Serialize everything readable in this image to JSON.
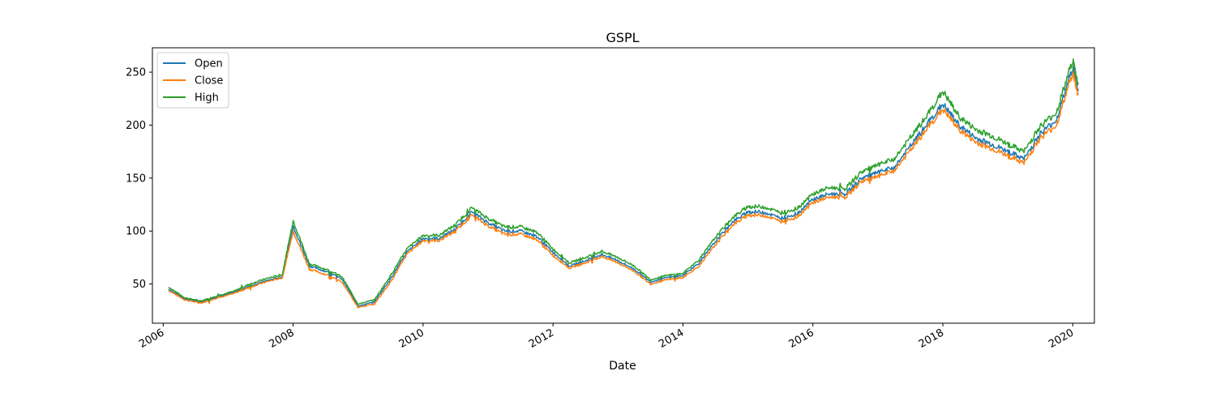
{
  "chart_data": {
    "type": "line",
    "title": "GSPL",
    "xlabel": "Date",
    "ylabel": "",
    "xlim": [
      "2005-11-01",
      "2020-05-01"
    ],
    "ylim": [
      13,
      273
    ],
    "x_ticks": [
      "2006",
      "2008",
      "2010",
      "2012",
      "2014",
      "2016",
      "2018",
      "2020"
    ],
    "y_ticks": [
      50,
      100,
      150,
      200,
      250
    ],
    "grid": false,
    "legend": {
      "placement": "top-left",
      "entries": [
        "Open",
        "Close",
        "High"
      ]
    },
    "colors": {
      "Open": "#1f77b4",
      "Close": "#ff7f0e",
      "High": "#2ca02c"
    },
    "x": [
      "2006-02",
      "2006-05",
      "2006-08",
      "2006-11",
      "2007-02",
      "2007-05",
      "2007-08",
      "2007-11",
      "2008-01",
      "2008-04",
      "2008-07",
      "2008-10",
      "2009-01",
      "2009-04",
      "2009-07",
      "2009-10",
      "2010-01",
      "2010-04",
      "2010-07",
      "2010-10",
      "2011-01",
      "2011-04",
      "2011-07",
      "2011-10",
      "2012-01",
      "2012-04",
      "2012-07",
      "2012-10",
      "2013-01",
      "2013-04",
      "2013-07",
      "2013-10",
      "2014-01",
      "2014-04",
      "2014-07",
      "2014-10",
      "2015-01",
      "2015-04",
      "2015-07",
      "2015-10",
      "2016-01",
      "2016-04",
      "2016-07",
      "2016-10",
      "2017-01",
      "2017-04",
      "2017-07",
      "2017-10",
      "2018-01",
      "2018-04",
      "2018-07",
      "2018-10",
      "2019-01",
      "2019-04",
      "2019-07",
      "2019-10",
      "2020-01",
      "2020-02"
    ],
    "series": [
      {
        "name": "Open",
        "values": [
          45,
          36,
          33,
          38,
          42,
          48,
          53,
          57,
          105,
          67,
          62,
          55,
          29,
          33,
          55,
          80,
          93,
          93,
          102,
          118,
          108,
          100,
          100,
          95,
          80,
          67,
          72,
          78,
          72,
          64,
          52,
          56,
          58,
          70,
          90,
          108,
          118,
          118,
          112,
          116,
          130,
          135,
          135,
          150,
          155,
          160,
          180,
          200,
          220,
          200,
          188,
          182,
          175,
          168,
          192,
          205,
          255,
          232
        ]
      },
      {
        "name": "Close",
        "values": [
          44,
          35,
          32,
          37,
          41,
          47,
          52,
          56,
          100,
          64,
          59,
          52,
          28,
          31,
          52,
          78,
          91,
          91,
          100,
          115,
          105,
          97,
          97,
          92,
          77,
          65,
          70,
          76,
          70,
          62,
          50,
          54,
          56,
          67,
          87,
          105,
          115,
          115,
          109,
          113,
          127,
          132,
          132,
          147,
          151,
          157,
          176,
          196,
          215,
          196,
          184,
          178,
          171,
          164,
          188,
          200,
          250,
          228
        ]
      },
      {
        "name": "High",
        "values": [
          47,
          37,
          34,
          39,
          43,
          50,
          55,
          59,
          110,
          69,
          64,
          57,
          31,
          35,
          58,
          83,
          96,
          96,
          106,
          122,
          112,
          104,
          104,
          99,
          83,
          70,
          75,
          81,
          75,
          67,
          54,
          58,
          60,
          73,
          94,
          112,
          123,
          123,
          117,
          121,
          135,
          141,
          140,
          156,
          162,
          168,
          188,
          208,
          232,
          208,
          196,
          190,
          182,
          175,
          199,
          212,
          262,
          238
        ]
      }
    ]
  }
}
